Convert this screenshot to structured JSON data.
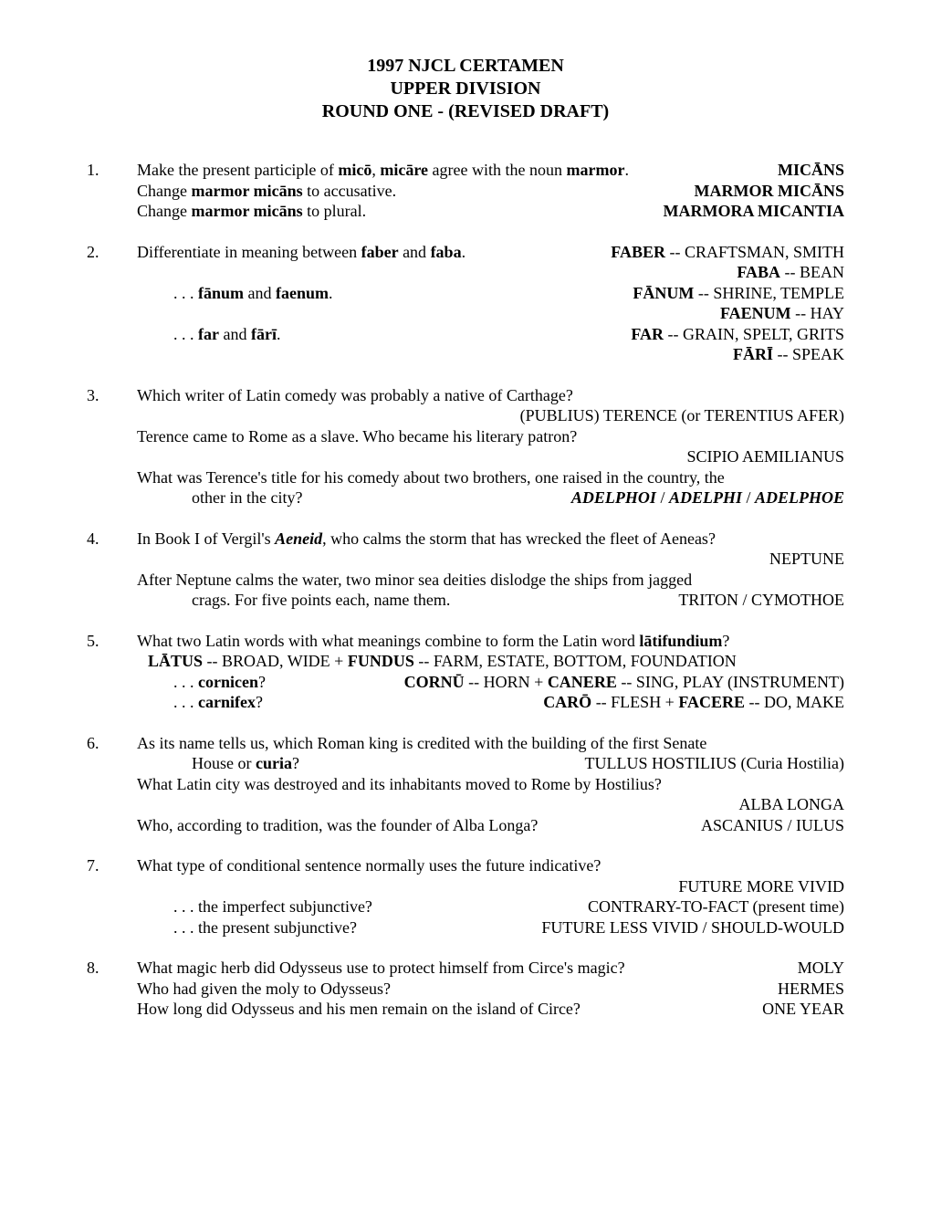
{
  "title": {
    "line1": "1997 NJCL CERTAMEN",
    "line2": "UPPER DIVISION",
    "line3": "ROUND ONE - (REVISED DRAFT)"
  },
  "q1": {
    "num": "1.",
    "l1": "Make the present participle of <b>micō</b>, <b>micāre</b> agree with the noun <b>marmor</b>.",
    "a1": "<b>MICĀNS</b>",
    "l2": "Change <b>marmor micāns</b> to accusative.",
    "a2": "<b>MARMOR MICĀNS</b>",
    "l3": "Change <b>marmor micāns</b> to plural.",
    "a3": "<b>MARMORA MICANTIA</b>"
  },
  "q2": {
    "num": "2.",
    "l1": "Differentiate in meaning between <b>faber</b> and <b>faba</b>.",
    "a1": "<b>FABER</b> -- CRAFTSMAN, SMITH",
    "a1b": "<b>FABA</b> -- BEAN",
    "l2": ". . . <b>fānum</b> and <b>faenum</b>.",
    "a2": "<b>FĀNUM</b> -- SHRINE, TEMPLE",
    "a2b": "<b>FAENUM</b> -- HAY",
    "l3": ". . . <b>far</b> and <b>fārī</b>.",
    "a3": "<b>FAR</b> -- GRAIN, SPELT, GRITS",
    "a3b": "<b>FĀRĪ</b> -- SPEAK"
  },
  "q3": {
    "num": "3.",
    "l1": "Which writer of Latin comedy was probably a native of Carthage?",
    "a1": "(PUBLIUS) TERENCE (or TERENTIUS AFER)",
    "l2": "Terence came to Rome as a slave.  Who became his literary patron?",
    "a2": "SCIPIO AEMILIANUS",
    "l3a": "What was Terence's title for his comedy about two brothers, one raised in the country, the",
    "l3b": "other in the city?",
    "a3": "<b><i>ADELPHOI</i></b> / <b><i>ADELPHI</i></b> / <b><i>ADELPHOE</i></b>"
  },
  "q4": {
    "num": "4.",
    "l1": "In Book I of Vergil's <b><i>Aeneid</i></b>, who calms the storm that has wrecked the fleet of Aeneas?",
    "a1": "NEPTUNE",
    "l2a": "After Neptune calms the water, two minor sea deities dislodge the ships from jagged",
    "l2b": "crags.  For five points each, name them.",
    "a2": "TRITON / CYMOTHOE"
  },
  "q5": {
    "num": "5.",
    "l1": "What two Latin words with what meanings combine to form the Latin word <b>lātifundium</b>?",
    "a1": "<b>LĀTUS</b> -- BROAD, WIDE + <b>FUNDUS</b> -- FARM, ESTATE, BOTTOM, FOUNDATION",
    "l2": ". . . <b>cornicen</b>?",
    "a2": "<b>CORNŪ</b> -- HORN + <b>CANERE</b> -- SING, PLAY (INSTRUMENT)",
    "l3": ". . . <b>carnifex</b>?",
    "a3": "<b>CARŌ</b> -- FLESH + <b>FACERE</b> -- DO, MAKE"
  },
  "q6": {
    "num": "6.",
    "l1a": "As its name tells us, which Roman king is credited with the building of the first Senate",
    "l1b": "House or <b>curia</b>?",
    "a1": "TULLUS HOSTILIUS  (Curia Hostilia)",
    "l2": "What Latin city was destroyed and its inhabitants moved to Rome by Hostilius?",
    "a2": "ALBA LONGA",
    "l3": "Who, according to tradition, was the founder of Alba Longa?",
    "a3": "ASCANIUS / IULUS"
  },
  "q7": {
    "num": "7.",
    "l1": "What type of conditional sentence normally uses the future indicative?",
    "a1": "FUTURE MORE VIVID",
    "l2": ". . . the imperfect subjunctive?",
    "a2": "CONTRARY-TO-FACT (present time)",
    "l3": ". . . the present subjunctive?",
    "a3": "FUTURE LESS VIVID / SHOULD-WOULD"
  },
  "q8": {
    "num": "8.",
    "l1": "What magic herb did Odysseus use to protect himself from Circe's magic?",
    "a1": "MOLY",
    "l2": "Who had given the moly to Odysseus?",
    "a2": "HERMES",
    "l3": "How long did Odysseus and his men remain on the island of Circe?",
    "a3": "ONE YEAR"
  }
}
